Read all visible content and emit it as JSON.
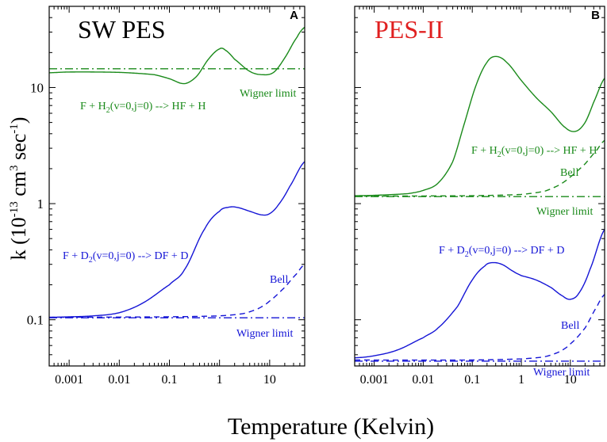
{
  "figure": {
    "ylabel": {
      "base": "k (10",
      "exp1": "-13",
      "mid1": " cm",
      "exp2": "3",
      "mid2": " sec",
      "exp3": "-1",
      "end": ")"
    },
    "xlabel": "Temperature (Kelvin)"
  },
  "colors": {
    "green": "#1a8a1a",
    "blue": "#1515d6",
    "red": "#e02020",
    "black": "#000000"
  },
  "chart_data": [
    {
      "type": "line",
      "panel_letter": "A",
      "title": "SW PES",
      "title_color": "#000000",
      "xscale": "log",
      "yscale": "log",
      "xlim": [
        0.0004,
        50
      ],
      "ylim": [
        0.04,
        50
      ],
      "x_ticks": [
        0.001,
        0.01,
        0.1,
        1,
        10
      ],
      "x_tick_labels": [
        "0.001",
        "0.01",
        "0.1",
        "1",
        "10"
      ],
      "y_ticks": [
        0.1,
        1,
        10
      ],
      "y_tick_labels": [
        "0.1",
        "1",
        "10"
      ],
      "series": [
        {
          "name": "F + H2(v=0,j=0) --> HF + H",
          "color": "#1a8a1a",
          "dash": "solid",
          "x": [
            0.0004,
            0.001,
            0.01,
            0.05,
            0.1,
            0.2,
            0.35,
            0.6,
            1.0,
            1.3,
            2,
            4,
            7,
            12,
            20,
            35,
            50
          ],
          "y": [
            13.4,
            13.6,
            13.5,
            12.9,
            11.9,
            10.8,
            12.5,
            17.5,
            21.5,
            21.0,
            17.5,
            13.8,
            12.9,
            13.5,
            18.0,
            27.0,
            33.0
          ]
        },
        {
          "name": "Wigner limit (H2)",
          "color": "#1a8a1a",
          "dash": "dashdot",
          "x": [
            0.0004,
            50
          ],
          "y": [
            14.5,
            14.5
          ]
        },
        {
          "name": "F + D2(v=0,j=0) --> DF + D",
          "color": "#1515d6",
          "dash": "solid",
          "x": [
            0.0004,
            0.001,
            0.003,
            0.01,
            0.03,
            0.1,
            0.2,
            0.5,
            1.0,
            1.5,
            2.2,
            4,
            7,
            10,
            15,
            25,
            50
          ],
          "y": [
            0.105,
            0.106,
            0.108,
            0.115,
            0.14,
            0.2,
            0.27,
            0.6,
            0.86,
            0.93,
            0.93,
            0.86,
            0.8,
            0.82,
            0.98,
            1.4,
            2.3
          ]
        },
        {
          "name": "Bell (D2)",
          "color": "#1515d6",
          "dash": "dashed",
          "x": [
            0.0004,
            0.1,
            1,
            3,
            6,
            10,
            20,
            35,
            50
          ],
          "y": [
            0.105,
            0.106,
            0.108,
            0.113,
            0.125,
            0.145,
            0.19,
            0.25,
            0.3
          ]
        },
        {
          "name": "Wigner limit (D2)",
          "color": "#1515d6",
          "dash": "dashdot",
          "x": [
            0.0004,
            50
          ],
          "y": [
            0.104,
            0.104
          ]
        }
      ],
      "annotations": [
        {
          "key": "h2_label",
          "base": "F + H",
          "sub": "2",
          "rest": "(v=0,j=0) --> HF + H",
          "color": "#1a8a1a"
        },
        {
          "key": "h2_wigner",
          "text": "Wigner limit",
          "color": "#1a8a1a"
        },
        {
          "key": "d2_label",
          "base": "F + D",
          "sub": "2",
          "rest": "(v=0,j=0) --> DF + D",
          "color": "#1515d6"
        },
        {
          "key": "d2_bell",
          "text": "Bell",
          "color": "#1515d6"
        },
        {
          "key": "d2_wigner",
          "text": "Wigner limit",
          "color": "#1515d6"
        }
      ]
    },
    {
      "type": "line",
      "panel_letter": "B",
      "title": "PES-II",
      "title_color": "#e02020",
      "xscale": "log",
      "yscale": "log",
      "xlim": [
        0.0004,
        50
      ],
      "ylim": [
        0.04,
        50
      ],
      "x_ticks": [
        0.001,
        0.01,
        0.1,
        1,
        10
      ],
      "x_tick_labels": [
        "0.001",
        "0.01",
        "0.1",
        "1",
        "10"
      ],
      "y_ticks": [
        0.1,
        1,
        10
      ],
      "y_tick_labels": [
        "",
        "",
        ""
      ],
      "series": [
        {
          "name": "F + H2(v=0,j=0) --> HF + H",
          "color": "#1a8a1a",
          "dash": "solid",
          "x": [
            0.0004,
            0.001,
            0.005,
            0.01,
            0.02,
            0.04,
            0.07,
            0.12,
            0.2,
            0.3,
            0.5,
            1,
            2,
            4,
            8,
            13,
            20,
            30,
            50
          ],
          "y": [
            1.17,
            1.18,
            1.22,
            1.3,
            1.5,
            2.3,
            5.0,
            10.5,
            16.5,
            18.5,
            16.5,
            11.5,
            8.2,
            6.2,
            4.5,
            4.2,
            5.0,
            7.5,
            12.0
          ]
        },
        {
          "name": "Bell (H2)",
          "color": "#1a8a1a",
          "dash": "dashed",
          "x": [
            0.0004,
            0.1,
            1,
            3,
            6,
            10,
            20,
            35,
            50
          ],
          "y": [
            1.16,
            1.17,
            1.2,
            1.28,
            1.45,
            1.7,
            2.2,
            2.9,
            3.5
          ]
        },
        {
          "name": "Wigner limit (H2)",
          "color": "#1a8a1a",
          "dash": "dashdot",
          "x": [
            0.0004,
            50
          ],
          "y": [
            1.15,
            1.15
          ]
        },
        {
          "name": "F + D2(v=0,j=0) --> DF + D",
          "color": "#1515d6",
          "dash": "solid",
          "x": [
            0.0004,
            0.001,
            0.003,
            0.01,
            0.02,
            0.05,
            0.1,
            0.18,
            0.25,
            0.4,
            0.7,
            1.0,
            2,
            4,
            7,
            10,
            15,
            25,
            50
          ],
          "y": [
            0.047,
            0.049,
            0.055,
            0.07,
            0.085,
            0.13,
            0.22,
            0.29,
            0.31,
            0.3,
            0.26,
            0.24,
            0.22,
            0.19,
            0.16,
            0.15,
            0.17,
            0.27,
            0.6
          ]
        },
        {
          "name": "Bell (D2)",
          "color": "#1515d6",
          "dash": "dashed",
          "x": [
            0.0004,
            0.1,
            1,
            3,
            6,
            10,
            20,
            35,
            50
          ],
          "y": [
            0.045,
            0.045,
            0.046,
            0.048,
            0.053,
            0.062,
            0.085,
            0.13,
            0.165
          ]
        },
        {
          "name": "Wigner limit (D2)",
          "color": "#1515d6",
          "dash": "dashdot",
          "x": [
            0.0004,
            50
          ],
          "y": [
            0.044,
            0.044
          ]
        }
      ],
      "annotations": [
        {
          "key": "h2_label",
          "base": "F + H",
          "sub": "2",
          "rest": "(v=0,j=0) --> HF + H",
          "color": "#1a8a1a"
        },
        {
          "key": "h2_bell",
          "text": "Bell",
          "color": "#1a8a1a"
        },
        {
          "key": "h2_wigner",
          "text": "Wigner limit",
          "color": "#1a8a1a"
        },
        {
          "key": "d2_label",
          "base": "F + D",
          "sub": "2",
          "rest": "(v=0,j=0) --> DF + D",
          "color": "#1515d6"
        },
        {
          "key": "d2_bell",
          "text": "Bell",
          "color": "#1515d6"
        },
        {
          "key": "d2_wigner",
          "text": "Wigner limit",
          "color": "#1515d6"
        }
      ]
    }
  ]
}
